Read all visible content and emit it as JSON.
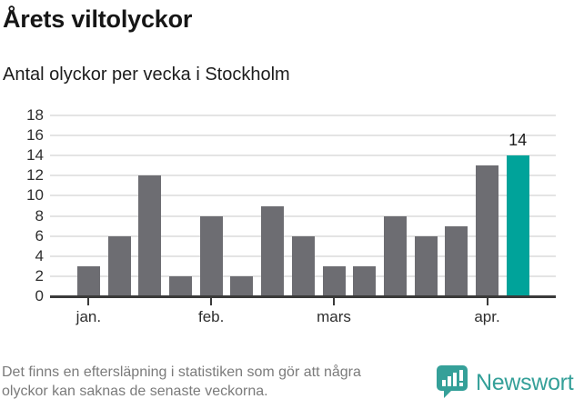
{
  "header": {
    "title": "Årets viltolyckor",
    "subtitle": "Antal olyckor per vecka i Stockholm"
  },
  "chart_data": {
    "type": "bar",
    "title": "Årets viltolyckor",
    "subtitle": "Antal olyckor per vecka i Stockholm",
    "values": [
      3,
      6,
      12,
      2,
      8,
      2,
      9,
      6,
      3,
      3,
      8,
      6,
      7,
      13,
      14
    ],
    "x_tick_labels": [
      "jan.",
      "feb.",
      "mars",
      "apr."
    ],
    "x_tick_indices": [
      0,
      4,
      8,
      13
    ],
    "y_ticks": [
      0,
      2,
      4,
      6,
      8,
      10,
      12,
      14,
      16,
      18
    ],
    "ylim": [
      0,
      18
    ],
    "grid": true,
    "legend": "none",
    "highlight_index": 14,
    "highlight_value_label": "14",
    "bar_color": "#6d6d72",
    "highlight_color": "#00a39a",
    "gridline_color": "#e4e4e4",
    "axis_color": "#3a3a3a"
  },
  "footer": {
    "note_line1": "Det finns en eftersläpning i statistiken som gör att några",
    "note_line2": "olyckor kan saknas de senaste veckorna.",
    "brand": "Newsworthy",
    "brand_color": "#35a099",
    "logo_icon": "bar-chart-speech-bubble-icon"
  }
}
